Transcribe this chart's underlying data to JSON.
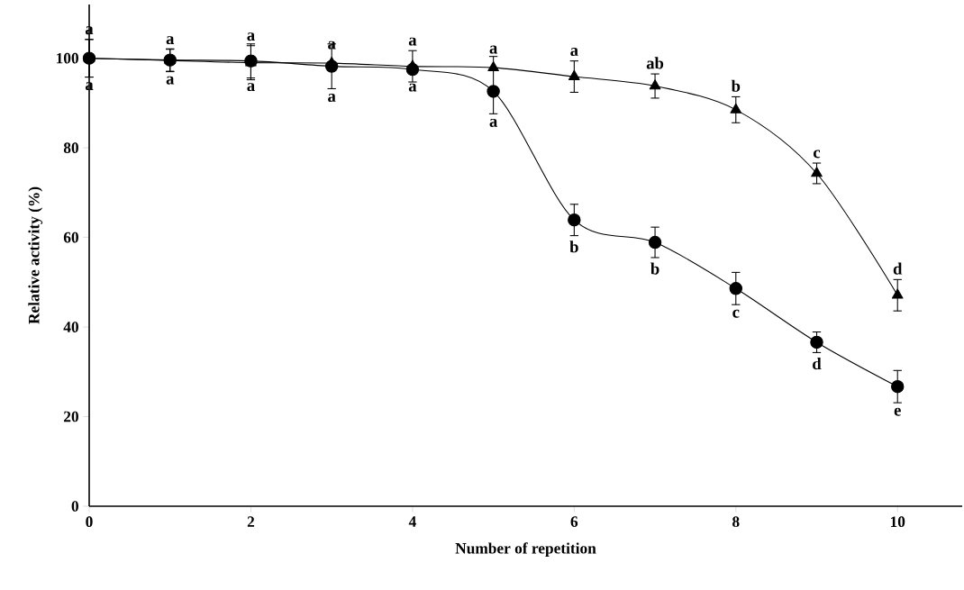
{
  "chart_data": {
    "type": "line",
    "xlabel": "Number of repetition",
    "ylabel": "Relative activity (%)",
    "x": [
      0,
      1,
      2,
      3,
      4,
      5,
      6,
      7,
      8,
      9,
      10
    ],
    "series": [
      {
        "color": "#000000",
        "marker": "circle",
        "values": [
          100,
          99.6,
          99.4,
          98.2,
          97.5,
          92.6,
          63.9,
          58.9,
          48.6,
          36.6,
          26.7
        ],
        "errors": [
          4.2,
          2.5,
          3.8,
          5,
          null,
          [
            87.6,
            100.4
          ],
          3.5,
          3.4,
          3.6,
          2.3,
          3.6
        ]
      },
      {
        "color": "#000000",
        "marker": "triangle",
        "values": [
          100,
          99.5,
          99.0,
          98.9,
          98.2,
          97.9,
          95.9,
          93.8,
          88.5,
          74.3,
          47.1
        ],
        "errors": [
          4.2,
          2.5,
          3.8,
          null,
          3.5,
          null,
          3.5,
          2.7,
          2.9,
          2.3,
          3.5
        ]
      }
    ],
    "xlim": [
      0,
      10.8
    ],
    "ylim": [
      0,
      112
    ],
    "xticks": [
      0,
      2,
      4,
      6,
      8,
      10
    ],
    "yticks": [
      0,
      20,
      40,
      60,
      80,
      100
    ],
    "grid": false,
    "line_style": "solid",
    "annotations": [
      "a",
      "a",
      "a",
      "a",
      "a",
      "a",
      "b",
      "b",
      "c",
      "d",
      "e",
      "a",
      "a",
      "a",
      "a",
      "a",
      "a",
      "a",
      "ab",
      "b",
      "c",
      "d"
    ]
  }
}
